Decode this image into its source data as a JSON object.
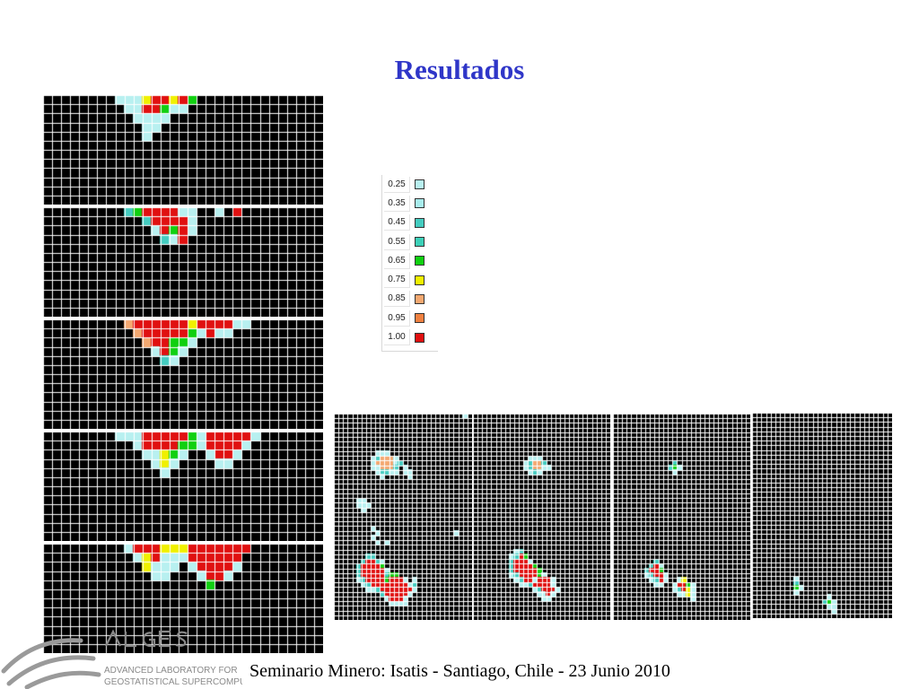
{
  "title": {
    "text": "Resultados",
    "color": "#2f36c8"
  },
  "legend": [
    {
      "label": "0.25",
      "color": "#b8f0f0"
    },
    {
      "label": "0.35",
      "color": "#a8ecec"
    },
    {
      "label": "0.45",
      "color": "#44ccc0"
    },
    {
      "label": "0.55",
      "color": "#3cd0b8"
    },
    {
      "label": "0.65",
      "color": "#10d010"
    },
    {
      "label": "0.75",
      "color": "#f0f000"
    },
    {
      "label": "0.85",
      "color": "#f4a870"
    },
    {
      "label": "0.95",
      "color": "#f08040"
    },
    {
      "label": "1.00",
      "color": "#e01010"
    }
  ],
  "footer": {
    "text": "Seminario Minero: Isatis - Santiago, Chile - 23 Junio 2010"
  },
  "logo": {
    "lines": [
      "ADVANCED LABORATORY FOR",
      "GEOSTATISTICAL SUPERCOMPUTING"
    ],
    "color": "#8a8a8a"
  }
}
